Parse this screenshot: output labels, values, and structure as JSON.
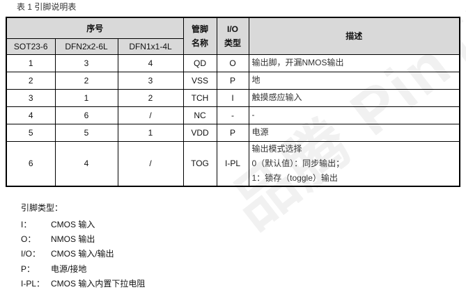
{
  "caption": "表 1 引脚说明表",
  "watermark": "品腾 PinTENG",
  "header": {
    "seq": "序号",
    "pkg": [
      "SOT23-6",
      "DFN2x2-6L",
      "DFN1x1-4L"
    ],
    "name": "管脚名称",
    "io": "I/O类型",
    "desc": "描述"
  },
  "rows": [
    {
      "sot": "1",
      "dfn2": "3",
      "dfn1": "4",
      "name": "QD",
      "io": "O",
      "desc": [
        "输出脚，开漏NMOS输出"
      ]
    },
    {
      "sot": "2",
      "dfn2": "2",
      "dfn1": "3",
      "name": "VSS",
      "io": "P",
      "desc": [
        "地"
      ]
    },
    {
      "sot": "3",
      "dfn2": "1",
      "dfn1": "2",
      "name": "TCH",
      "io": "I",
      "desc": [
        "触摸感应输入"
      ]
    },
    {
      "sot": "4",
      "dfn2": "6",
      "dfn1": "/",
      "name": "NC",
      "io": "-",
      "desc": [
        "-"
      ]
    },
    {
      "sot": "5",
      "dfn2": "5",
      "dfn1": "1",
      "name": "VDD",
      "io": "P",
      "desc": [
        "电源"
      ]
    },
    {
      "sot": "6",
      "dfn2": "4",
      "dfn1": "/",
      "name": "TOG",
      "io": "I-PL",
      "desc": [
        "输出模式选择",
        "0（默认值）：同步输出；",
        "1：锁存（toggle）输出"
      ]
    }
  ],
  "legend": {
    "title": "引脚类型：",
    "items": [
      {
        "k": "I：",
        "v": "CMOS 输入"
      },
      {
        "k": "O：",
        "v": "NMOS 输出"
      },
      {
        "k": "I/O：",
        "v": "CMOS 输入/输出"
      },
      {
        "k": "P：",
        "v": "电源/接地"
      },
      {
        "k": "I-PL：",
        "v": "CMOS 输入内置下拉电阻"
      }
    ]
  }
}
